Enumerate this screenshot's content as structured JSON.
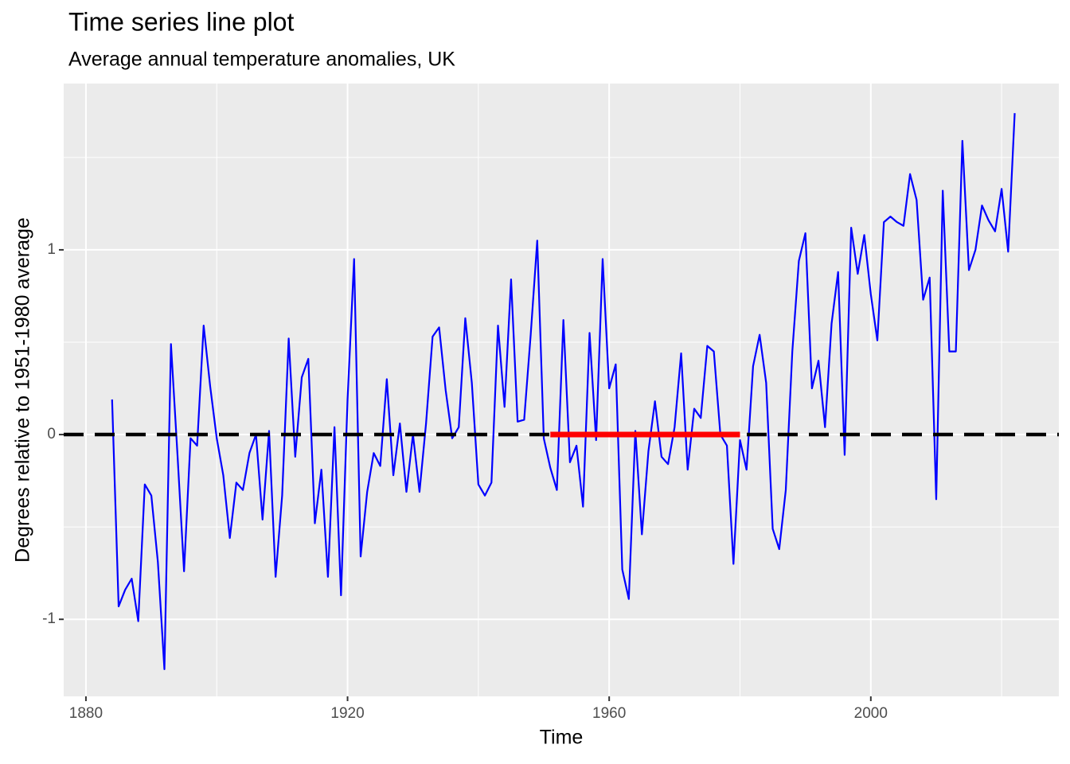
{
  "chart_data": {
    "type": "line",
    "title": "Time series line plot",
    "subtitle": "Average annual temperature anomalies, UK",
    "x_label": "Time",
    "y_label": "Degrees relative to 1951-1980 average",
    "color": "#0000ff",
    "x": [
      1884,
      1885,
      1886,
      1887,
      1888,
      1889,
      1890,
      1891,
      1892,
      1893,
      1894,
      1895,
      1896,
      1897,
      1898,
      1899,
      1900,
      1901,
      1902,
      1903,
      1904,
      1905,
      1906,
      1907,
      1908,
      1909,
      1910,
      1911,
      1912,
      1913,
      1914,
      1915,
      1916,
      1917,
      1918,
      1919,
      1920,
      1921,
      1922,
      1923,
      1924,
      1925,
      1926,
      1927,
      1928,
      1929,
      1930,
      1931,
      1932,
      1933,
      1934,
      1935,
      1936,
      1937,
      1938,
      1939,
      1940,
      1941,
      1942,
      1943,
      1944,
      1945,
      1946,
      1947,
      1948,
      1949,
      1950,
      1951,
      1952,
      1953,
      1954,
      1955,
      1956,
      1957,
      1958,
      1959,
      1960,
      1961,
      1962,
      1963,
      1964,
      1965,
      1966,
      1967,
      1968,
      1969,
      1970,
      1971,
      1972,
      1973,
      1974,
      1975,
      1976,
      1977,
      1978,
      1979,
      1980,
      1981,
      1982,
      1983,
      1984,
      1985,
      1986,
      1987,
      1988,
      1989,
      1990,
      1991,
      1992,
      1993,
      1994,
      1995,
      1996,
      1997,
      1998,
      1999,
      2000,
      2001,
      2002,
      2003,
      2004,
      2005,
      2006,
      2007,
      2008,
      2009,
      2010,
      2011,
      2012,
      2013,
      2014,
      2015,
      2016,
      2017,
      2018,
      2019,
      2020,
      2021,
      2022
    ],
    "values": [
      0.19,
      -0.93,
      -0.84,
      -0.78,
      -1.01,
      -0.27,
      -0.33,
      -0.69,
      -1.27,
      0.49,
      -0.11,
      -0.74,
      -0.02,
      -0.06,
      0.59,
      0.26,
      -0.02,
      -0.22,
      -0.56,
      -0.26,
      -0.3,
      -0.1,
      0.0,
      -0.46,
      0.02,
      -0.77,
      -0.33,
      0.52,
      -0.12,
      0.31,
      0.41,
      -0.48,
      -0.19,
      -0.77,
      0.04,
      -0.87,
      0.19,
      0.95,
      -0.66,
      -0.31,
      -0.1,
      -0.17,
      0.3,
      -0.22,
      0.06,
      -0.31,
      0.0,
      -0.31,
      0.06,
      0.53,
      0.58,
      0.24,
      -0.02,
      0.04,
      0.63,
      0.28,
      -0.27,
      -0.33,
      -0.26,
      0.59,
      0.15,
      0.84,
      0.07,
      0.08,
      0.54,
      1.05,
      -0.02,
      -0.18,
      -0.3,
      0.62,
      -0.15,
      -0.06,
      -0.39,
      0.55,
      -0.03,
      0.95,
      0.25,
      0.38,
      -0.73,
      -0.89,
      0.02,
      -0.54,
      -0.09,
      0.18,
      -0.12,
      -0.16,
      0.04,
      0.44,
      -0.19,
      0.14,
      0.09,
      0.48,
      0.45,
      0.0,
      -0.06,
      -0.7,
      -0.03,
      -0.19,
      0.37,
      0.54,
      0.28,
      -0.51,
      -0.62,
      -0.3,
      0.45,
      0.94,
      1.09,
      0.25,
      0.4,
      0.04,
      0.6,
      0.88,
      -0.11,
      1.12,
      0.87,
      1.08,
      0.76,
      0.51,
      1.15,
      1.18,
      1.15,
      1.13,
      1.41,
      1.27,
      0.73,
      0.85,
      -0.35,
      1.32,
      0.45,
      0.45,
      1.59,
      0.89,
      1.0,
      1.24,
      1.16,
      1.1,
      1.33,
      0.99,
      1.74
    ],
    "reference_line": {
      "y": 0,
      "color": "#000000",
      "style": "dashed"
    },
    "highlight": {
      "x": [
        1951,
        1980
      ],
      "y": 0,
      "color": "#ff0000"
    },
    "xlim": [
      1876.6,
      2028.75
    ],
    "ylim": [
      -1.417,
      1.9
    ],
    "xticks": [
      1880,
      1920,
      1960,
      2000
    ],
    "yticks": [
      -1,
      0,
      1
    ],
    "x_minor_grid": [
      1900,
      1940,
      1980,
      2020
    ],
    "y_minor_grid": [
      -0.5,
      0.5,
      1.5
    ],
    "grid": true
  }
}
